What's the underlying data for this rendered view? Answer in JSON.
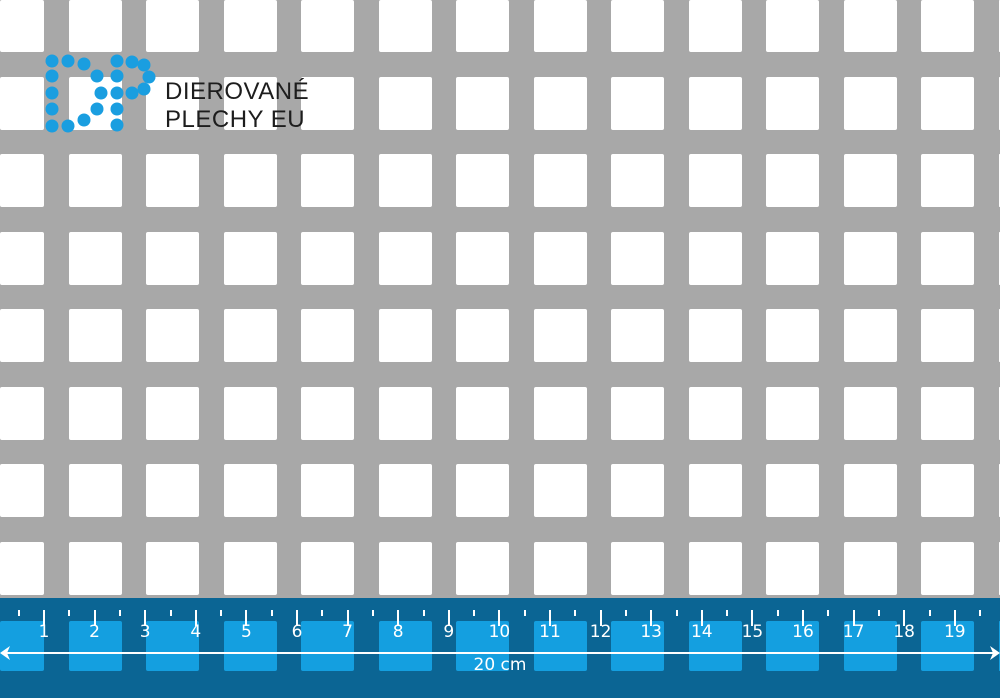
{
  "brand": {
    "line1": "DIEROVANÉ",
    "line2": "PLECHY EU",
    "color": "#1a9ee0"
  },
  "ruler": {
    "labels": [
      "1",
      "2",
      "3",
      "4",
      "5",
      "6",
      "7",
      "8",
      "9",
      "10",
      "11",
      "12",
      "13",
      "14",
      "15",
      "16",
      "17",
      "18",
      "19"
    ],
    "length_label": "20 cm",
    "background": "#0b6594",
    "hole_color": "#149fe0"
  },
  "sheet": {
    "color": "#a8a8a8",
    "hole_shape": "square"
  }
}
